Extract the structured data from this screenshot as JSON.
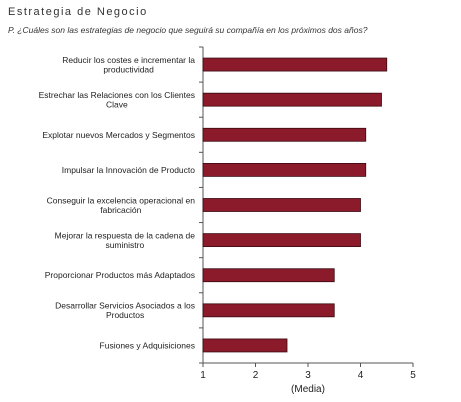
{
  "header": {
    "title": "Estrategia de Negocio",
    "question": "P. ¿Cuáles son las estrategias de negocio que seguirá su compañía en los próximos dos años?"
  },
  "chart_data": {
    "type": "bar",
    "orientation": "horizontal",
    "categories": [
      [
        "Reducir los costes e incrementar la",
        "productividad"
      ],
      [
        "Estrechar las Relaciones con los Clientes",
        "Clave"
      ],
      [
        "Explotar nuevos Mercados y Segmentos"
      ],
      [
        "Impulsar la Innovación de Producto"
      ],
      [
        "Conseguir la excelencia operacional en",
        "fabricación"
      ],
      [
        "Mejorar la respuesta de la cadena de",
        "suministro"
      ],
      [
        "Proporcionar Productos más Adaptados"
      ],
      [
        "Desarrollar Servicios Asociados a los",
        "Productos"
      ],
      [
        "Fusiones y Adquisiciones"
      ]
    ],
    "values": [
      4.5,
      4.4,
      4.1,
      4.1,
      4.0,
      4.0,
      3.5,
      3.5,
      2.6
    ],
    "xlim": [
      1,
      5
    ],
    "xticks": [
      "1",
      "2",
      "3",
      "4",
      "5"
    ],
    "xlabel": "(Media)",
    "bar_color": "#8b1a2b",
    "grid": false
  }
}
